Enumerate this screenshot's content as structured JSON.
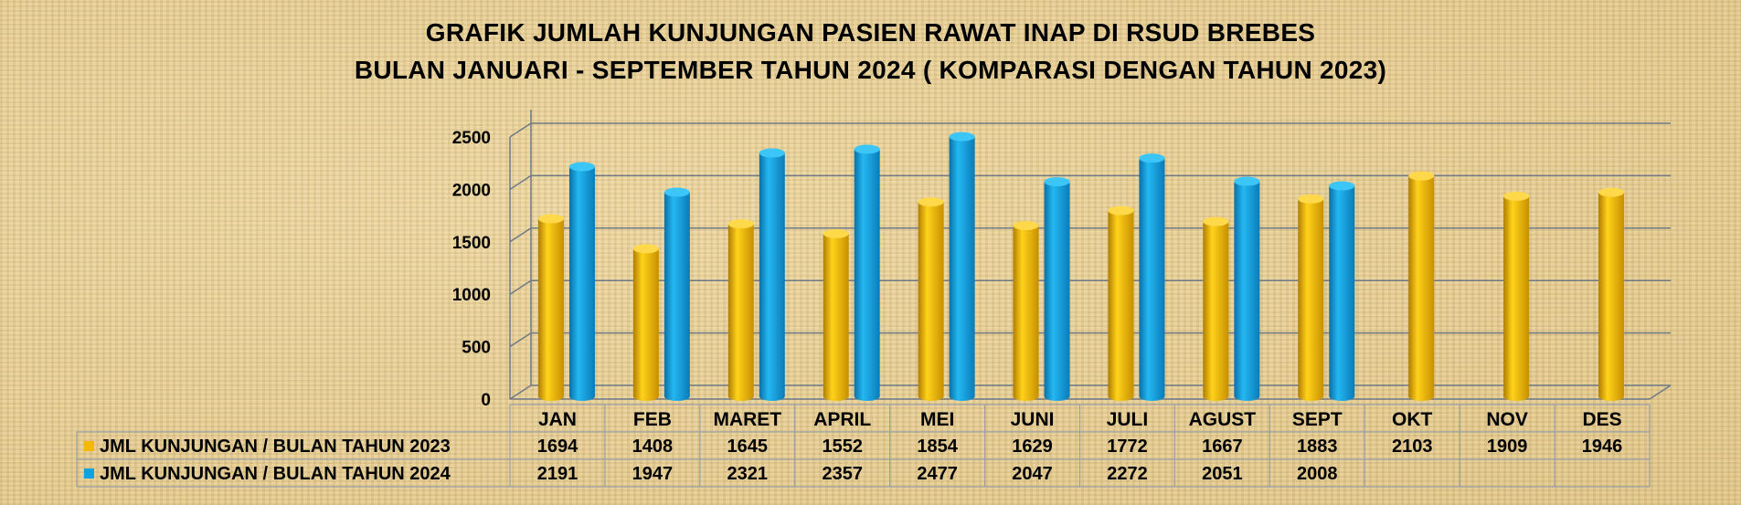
{
  "title_line1": "GRAFIK JUMLAH KUNJUNGAN PASIEN RAWAT INAP DI RSUD BREBES",
  "title_line2": "BULAN JANUARI - SEPTEMBER TAHUN 2024 ( KOMPARASI DENGAN TAHUN 2023)",
  "colors": {
    "series2023": "#f5b800",
    "series2024": "#0fa3e0",
    "grid": "#6e7a86",
    "text": "#000000"
  },
  "chart_data": {
    "type": "bar",
    "title": "GRAFIK JUMLAH KUNJUNGAN PASIEN RAWAT INAP DI RSUD BREBES",
    "subtitle": "BULAN JANUARI - SEPTEMBER TAHUN 2024 ( KOMPARASI DENGAN TAHUN 2023)",
    "categories": [
      "JAN",
      "FEB",
      "MARET",
      "APRIL",
      "MEI",
      "JUNI",
      "JULI",
      "AGUST",
      "SEPT",
      "OKT",
      "NOV",
      "DES"
    ],
    "series": [
      {
        "name": "JML KUNJUNGAN / BULAN TAHUN 2023",
        "values": [
          1694,
          1408,
          1645,
          1552,
          1854,
          1629,
          1772,
          1667,
          1883,
          2103,
          1909,
          1946
        ]
      },
      {
        "name": "JML KUNJUNGAN / BULAN TAHUN 2024",
        "values": [
          2191,
          1947,
          2321,
          2357,
          2477,
          2047,
          2272,
          2051,
          2008,
          null,
          null,
          null
        ]
      }
    ],
    "yticks": [
      0,
      500,
      1000,
      1500,
      2000,
      2500
    ],
    "ylim": [
      0,
      2500
    ],
    "grid": true,
    "legend": "data-table-below"
  }
}
